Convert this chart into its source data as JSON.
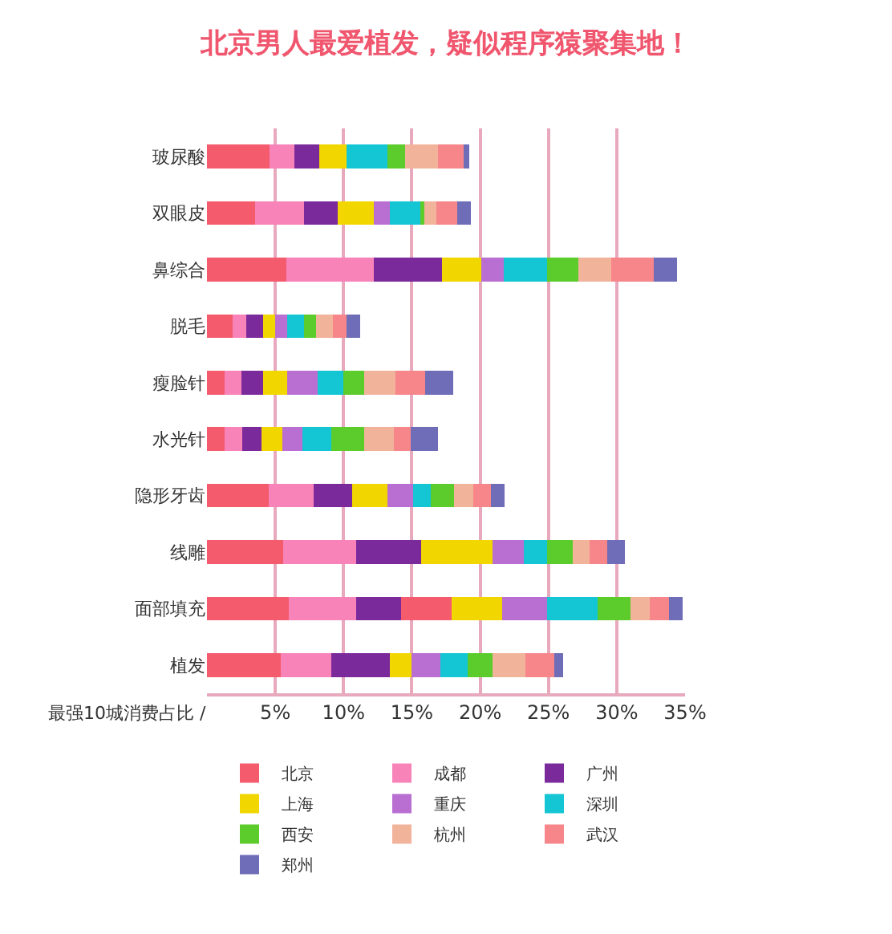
{
  "chart_data": {
    "type": "bar",
    "orientation": "horizontal",
    "stacked": true,
    "title": "北京男人最爱植发，疑似程序猿聚集地！",
    "xlabel": "最强10城消费占比 /",
    "categories": [
      "玻尿酸",
      "双眼皮",
      "鼻综合",
      "脱毛",
      "瘦脸针",
      "水光针",
      "隐形牙齿",
      "线雕",
      "面部填充",
      "植发"
    ],
    "series": [
      {
        "name": "北京",
        "color": "#f45b6c",
        "values": [
          4.6,
          3.5,
          5.8,
          1.9,
          1.3,
          1.3,
          4.5,
          5.6,
          6.0,
          5.4
        ]
      },
      {
        "name": "成都",
        "color": "#f783b9",
        "values": [
          1.8,
          3.6,
          6.4,
          1.0,
          1.2,
          1.3,
          3.3,
          5.3,
          4.9,
          3.7
        ]
      },
      {
        "name": "广州",
        "color": "#7b2a9c",
        "values": [
          1.8,
          2.5,
          5.0,
          1.2,
          1.6,
          1.4,
          2.8,
          4.8,
          3.3,
          4.3
        ]
      },
      {
        "color": "#f45b6c",
        "values": [
          null,
          null,
          null,
          null,
          null,
          null,
          null,
          null,
          3.7,
          null
        ]
      },
      {
        "name": "上海",
        "color": "#f2d600",
        "values": [
          2.0,
          2.6,
          2.9,
          0.9,
          1.8,
          1.5,
          2.6,
          5.2,
          3.7,
          1.6
        ]
      },
      {
        "name": "重庆",
        "color": "#b86fd1",
        "values": [
          null,
          1.2,
          1.6,
          0.9,
          2.2,
          1.5,
          1.9,
          2.3,
          3.3,
          2.1
        ]
      },
      {
        "name": "深圳",
        "color": "#14c6d4",
        "values": [
          3.0,
          2.2,
          3.2,
          1.2,
          1.9,
          2.1,
          1.3,
          1.7,
          3.7,
          2.0
        ]
      },
      {
        "name": "西安",
        "color": "#5ccc2c",
        "values": [
          1.3,
          0.3,
          2.3,
          0.9,
          1.5,
          2.4,
          1.7,
          1.9,
          2.4,
          1.8
        ]
      },
      {
        "name": "杭州",
        "color": "#f2b39b",
        "values": [
          2.4,
          0.9,
          2.4,
          1.2,
          2.3,
          2.2,
          1.4,
          1.2,
          1.4,
          2.4
        ]
      },
      {
        "name": "武汉",
        "color": "#f7868a",
        "values": [
          1.9,
          1.5,
          3.1,
          1.0,
          2.2,
          1.2,
          1.3,
          1.3,
          1.4,
          2.1
        ]
      },
      {
        "name": "郑州",
        "color": "#6f6cb8",
        "values": [
          0.4,
          1.0,
          1.7,
          1.0,
          2.0,
          2.0,
          1.0,
          1.3,
          1.0,
          0.7
        ]
      }
    ],
    "xlim": [
      0,
      35
    ],
    "xticks": [
      {
        "value": 5,
        "label": "5%"
      },
      {
        "value": 10,
        "label": "10%"
      },
      {
        "value": 15,
        "label": "15%"
      },
      {
        "value": 20,
        "label": "20%"
      },
      {
        "value": 25,
        "label": "25%"
      },
      {
        "value": 30,
        "label": "30%"
      },
      {
        "value": 35,
        "label": "35%"
      }
    ],
    "grid": "x",
    "legend": "bottom"
  }
}
